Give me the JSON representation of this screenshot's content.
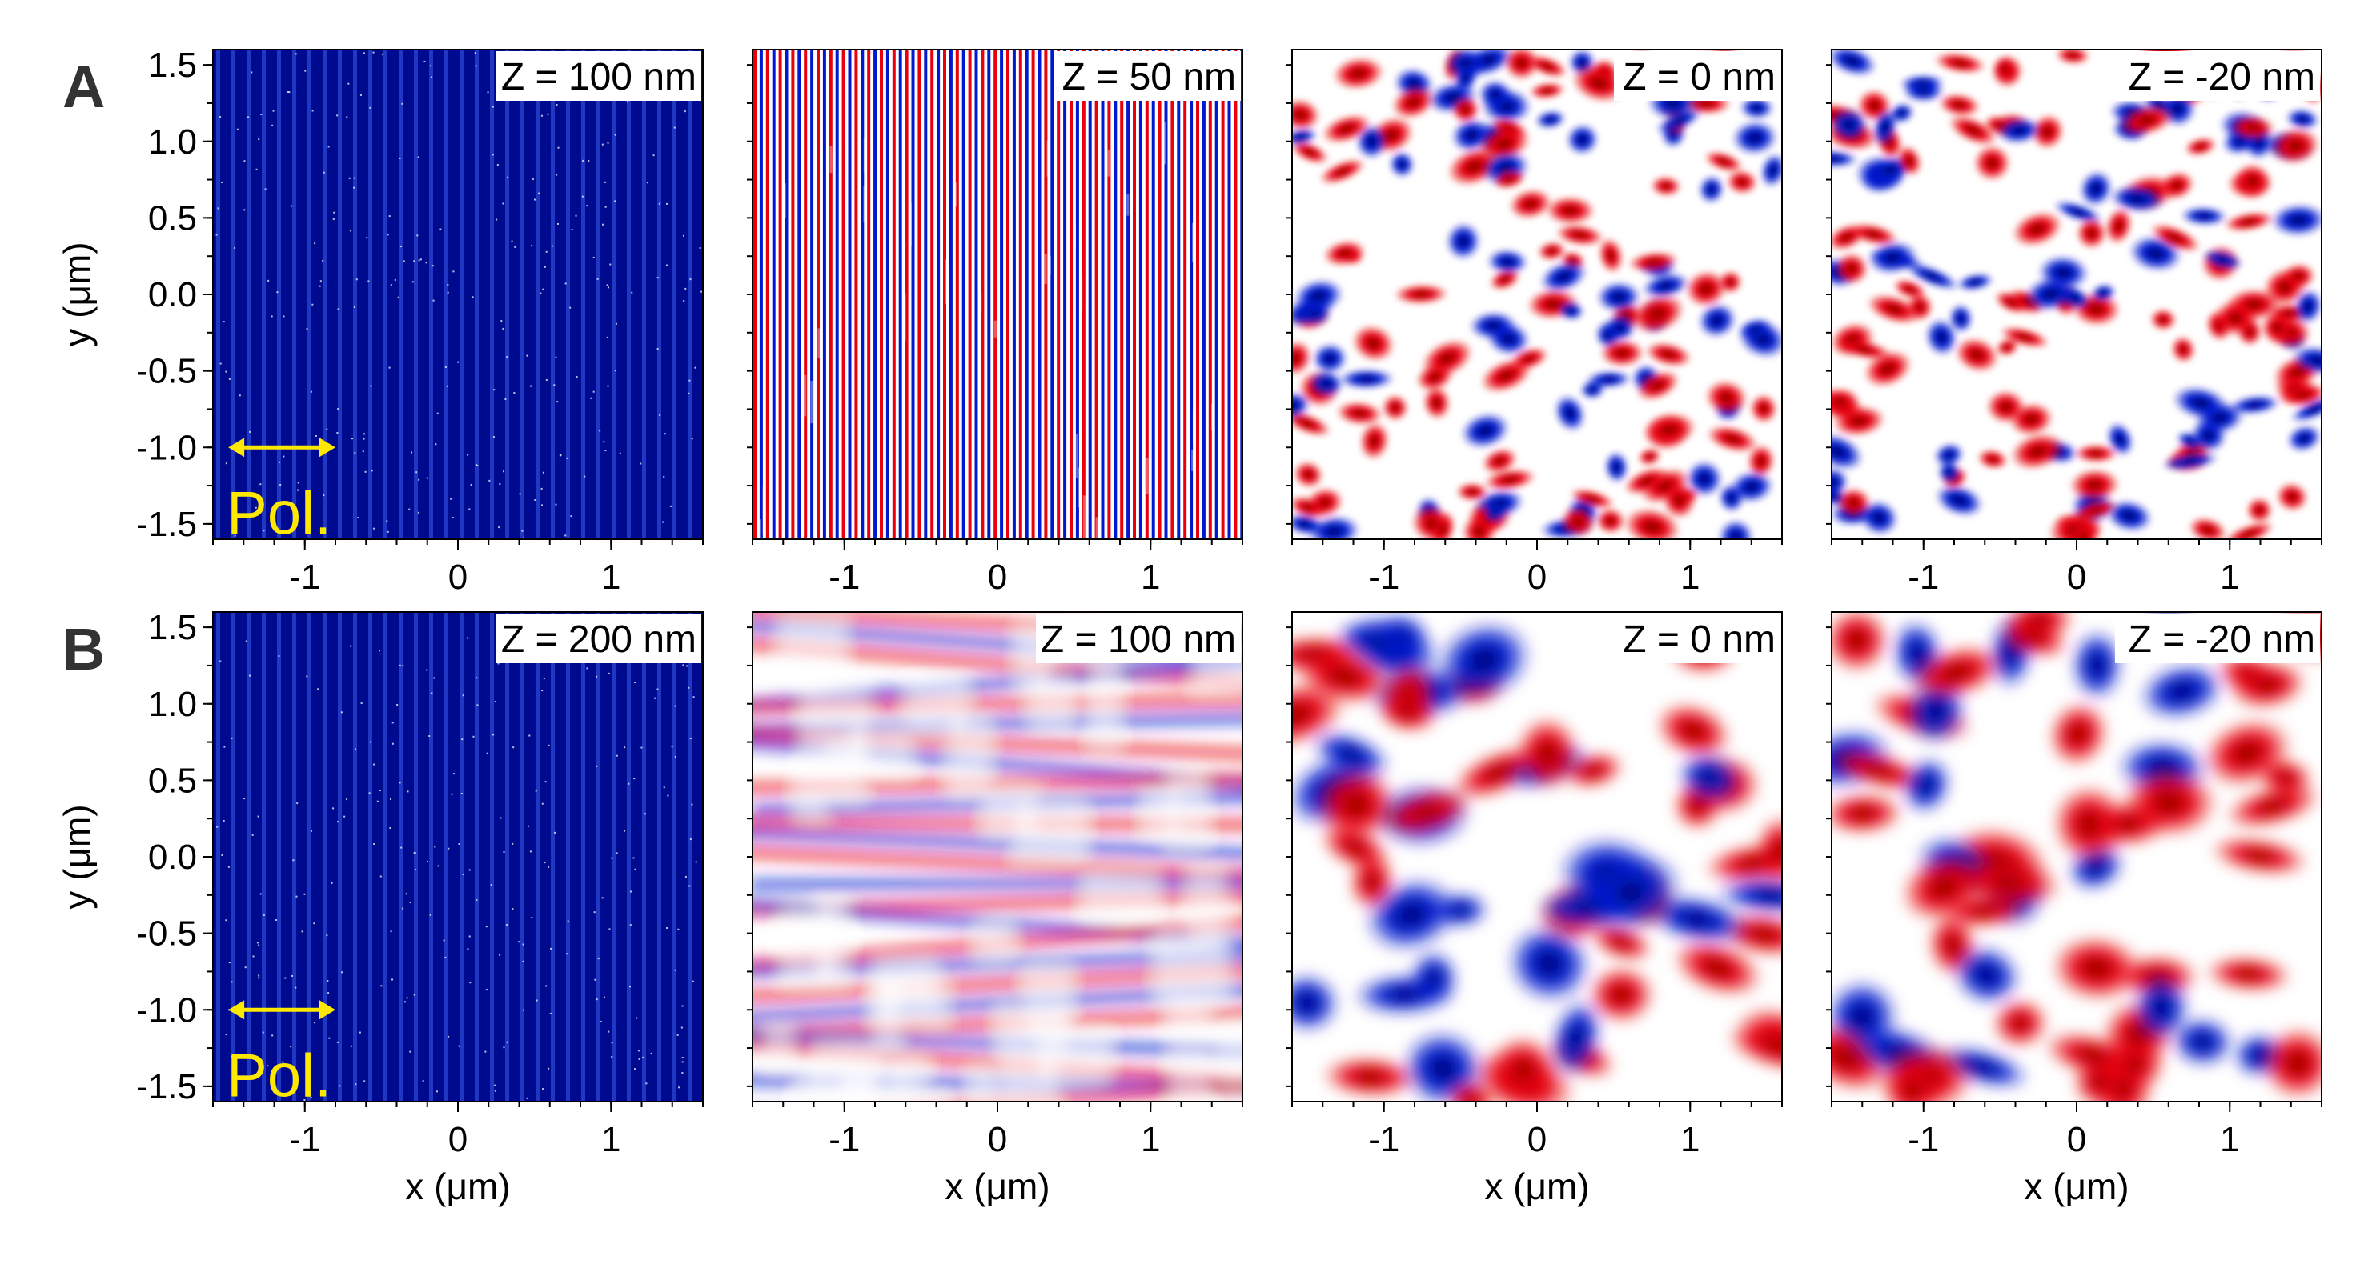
{
  "figure": {
    "row_labels": [
      "A",
      "B"
    ],
    "polarization_label": "Pol."
  },
  "colors": {
    "dark_background": "#000a8e",
    "stripe_light": "#3a5cf0",
    "positive": "#e8000b",
    "positive_dark": "#7a0000",
    "negative": "#0018d0",
    "negative_dark": "#000a5c",
    "neutral": "#ffffff",
    "annotation": "#ffe800",
    "axis": "#000000"
  },
  "chart_data": [
    {
      "type": "heatmap",
      "row": "A",
      "colormap": "dark-stripes",
      "label": "Z = 100 nm",
      "xlabel": "",
      "ylabel": "y (μm)",
      "xlim": [
        -1.6,
        1.6
      ],
      "ylim": [
        -1.6,
        1.6
      ],
      "xticks": [
        "-1",
        "0",
        "1"
      ],
      "yticks": [
        "1.5",
        "1.0",
        "0.5",
        "0.0",
        "-0.5",
        "-1.0",
        "-1.5"
      ]
    },
    {
      "type": "heatmap",
      "row": "A",
      "colormap": "red-blue-stripes",
      "label": "Z = 50 nm",
      "xlabel": "",
      "ylabel": "",
      "xlim": [
        -1.6,
        1.6
      ],
      "ylim": [
        -1.6,
        1.6
      ],
      "xticks": [
        "-1",
        "0",
        "1"
      ],
      "yticks": []
    },
    {
      "type": "heatmap",
      "row": "A",
      "colormap": "red-blue-fine",
      "label": "Z = 0 nm",
      "xlabel": "",
      "ylabel": "",
      "xlim": [
        -1.6,
        1.6
      ],
      "ylim": [
        -1.6,
        1.6
      ],
      "xticks": [
        "-1",
        "0",
        "1"
      ],
      "yticks": []
    },
    {
      "type": "heatmap",
      "row": "A",
      "colormap": "red-blue-fine",
      "label": "Z = -20 nm",
      "xlabel": "",
      "ylabel": "",
      "xlim": [
        -1.6,
        1.6
      ],
      "ylim": [
        -1.6,
        1.6
      ],
      "xticks": [
        "-1",
        "0",
        "1"
      ],
      "yticks": []
    },
    {
      "type": "heatmap",
      "row": "B",
      "colormap": "dark-stripes",
      "label": "Z = 200 nm",
      "xlabel": "x (μm)",
      "ylabel": "y (μm)",
      "xlim": [
        -1.6,
        1.6
      ],
      "ylim": [
        -1.6,
        1.6
      ],
      "xticks": [
        "-1",
        "0",
        "1"
      ],
      "yticks": [
        "1.5",
        "1.0",
        "0.5",
        "0.0",
        "-0.5",
        "-1.0",
        "-1.5"
      ]
    },
    {
      "type": "heatmap",
      "row": "B",
      "colormap": "red-blue-banded",
      "label": "Z = 100 nm",
      "xlabel": "x (μm)",
      "ylabel": "",
      "xlim": [
        -1.6,
        1.6
      ],
      "ylim": [
        -1.6,
        1.6
      ],
      "xticks": [
        "-1",
        "0",
        "1"
      ],
      "yticks": []
    },
    {
      "type": "heatmap",
      "row": "B",
      "colormap": "red-blue-smooth",
      "label": "Z = 0 nm",
      "xlabel": "x (μm)",
      "ylabel": "",
      "xlim": [
        -1.6,
        1.6
      ],
      "ylim": [
        -1.6,
        1.6
      ],
      "xticks": [
        "-1",
        "0",
        "1"
      ],
      "yticks": []
    },
    {
      "type": "heatmap",
      "row": "B",
      "colormap": "red-blue-smooth",
      "label": "Z = -20 nm",
      "xlabel": "x (μm)",
      "ylabel": "",
      "xlim": [
        -1.6,
        1.6
      ],
      "ylim": [
        -1.6,
        1.6
      ],
      "xticks": [
        "-1",
        "0",
        "1"
      ],
      "yticks": []
    }
  ]
}
